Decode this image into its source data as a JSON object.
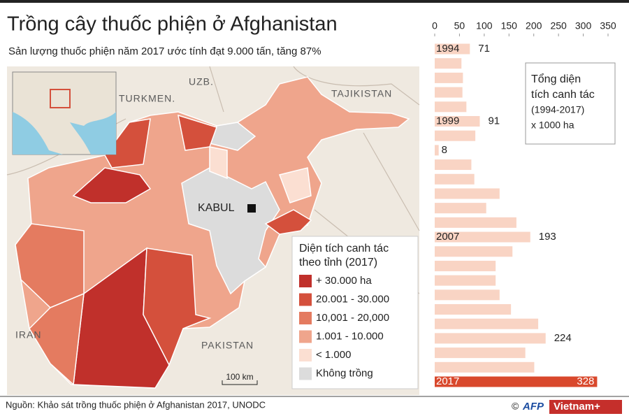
{
  "header": {
    "title": "Trồng cây thuốc phiện ở Afghanistan",
    "subtitle": "Sản lượng thuốc phiện năm 2017 ước tính đạt 9.000 tấn, tăng 87%"
  },
  "map": {
    "labels": {
      "uzb": "UZB.",
      "turkmen": "TURKMEN.",
      "tajikistan": "TAJIKISTAN",
      "kabul": "KABUL",
      "iran": "IRAN",
      "pakistan": "PAKISTAN"
    },
    "scale": "100 km",
    "legend": {
      "title": [
        "Diện tích canh tác",
        "theo tỉnh (2017)"
      ],
      "items": [
        {
          "label": "+ 30.000 ha",
          "color": "#c0302b"
        },
        {
          "label": "20.001 - 30.000",
          "color": "#d4503c"
        },
        {
          "label": "10,001 - 20,000",
          "color": "#e47b60"
        },
        {
          "label": "1.001 - 10.000",
          "color": "#efa58c"
        },
        {
          "label": "< 1.000",
          "color": "#fbdfd2"
        },
        {
          "label": "Không trồng",
          "color": "#dcdcdc"
        }
      ]
    }
  },
  "chart_data": {
    "type": "bar",
    "orientation": "horizontal",
    "annotation": [
      "Tổng diện",
      "tích canh tác",
      "(1994-2017)",
      "x 1000 ha"
    ],
    "categories": [
      "1994",
      null,
      null,
      null,
      null,
      "1999",
      null,
      null,
      null,
      null,
      null,
      null,
      null,
      "2007",
      null,
      null,
      null,
      null,
      null,
      null,
      null,
      null,
      null,
      "2017"
    ],
    "values": [
      71,
      54,
      57,
      56,
      64,
      91,
      82,
      8,
      74,
      80,
      131,
      104,
      165,
      193,
      157,
      123,
      123,
      131,
      154,
      209,
      224,
      183,
      201,
      328
    ],
    "value_labels": [
      "71",
      null,
      null,
      null,
      null,
      "91",
      null,
      "8",
      null,
      null,
      null,
      null,
      null,
      "193",
      null,
      null,
      null,
      null,
      null,
      null,
      "224",
      null,
      null,
      "328"
    ],
    "colors": [
      "#f9d4c4",
      "#f9d4c4",
      "#f9d4c4",
      "#f9d4c4",
      "#f9d4c4",
      "#f9d4c4",
      "#f9d4c4",
      "#f9d4c4",
      "#f9d4c4",
      "#f9d4c4",
      "#f9d4c4",
      "#f9d4c4",
      "#f9d4c4",
      "#f9d4c4",
      "#f9d4c4",
      "#f9d4c4",
      "#f9d4c4",
      "#f9d4c4",
      "#f9d4c4",
      "#f9d4c4",
      "#f9d4c4",
      "#f9d4c4",
      "#f9d4c4",
      "#d9482c"
    ],
    "xlim": [
      0,
      350
    ],
    "xticks": [
      0,
      50,
      100,
      150,
      200,
      250,
      300,
      350
    ]
  },
  "footer": {
    "source": "Nguồn: Khảo sát trồng thuốc phiện ở Afghanistan 2017, UNODC",
    "credit_copy": "©",
    "credit_afp": "AFP",
    "credit_vn": "Vietnam+"
  }
}
